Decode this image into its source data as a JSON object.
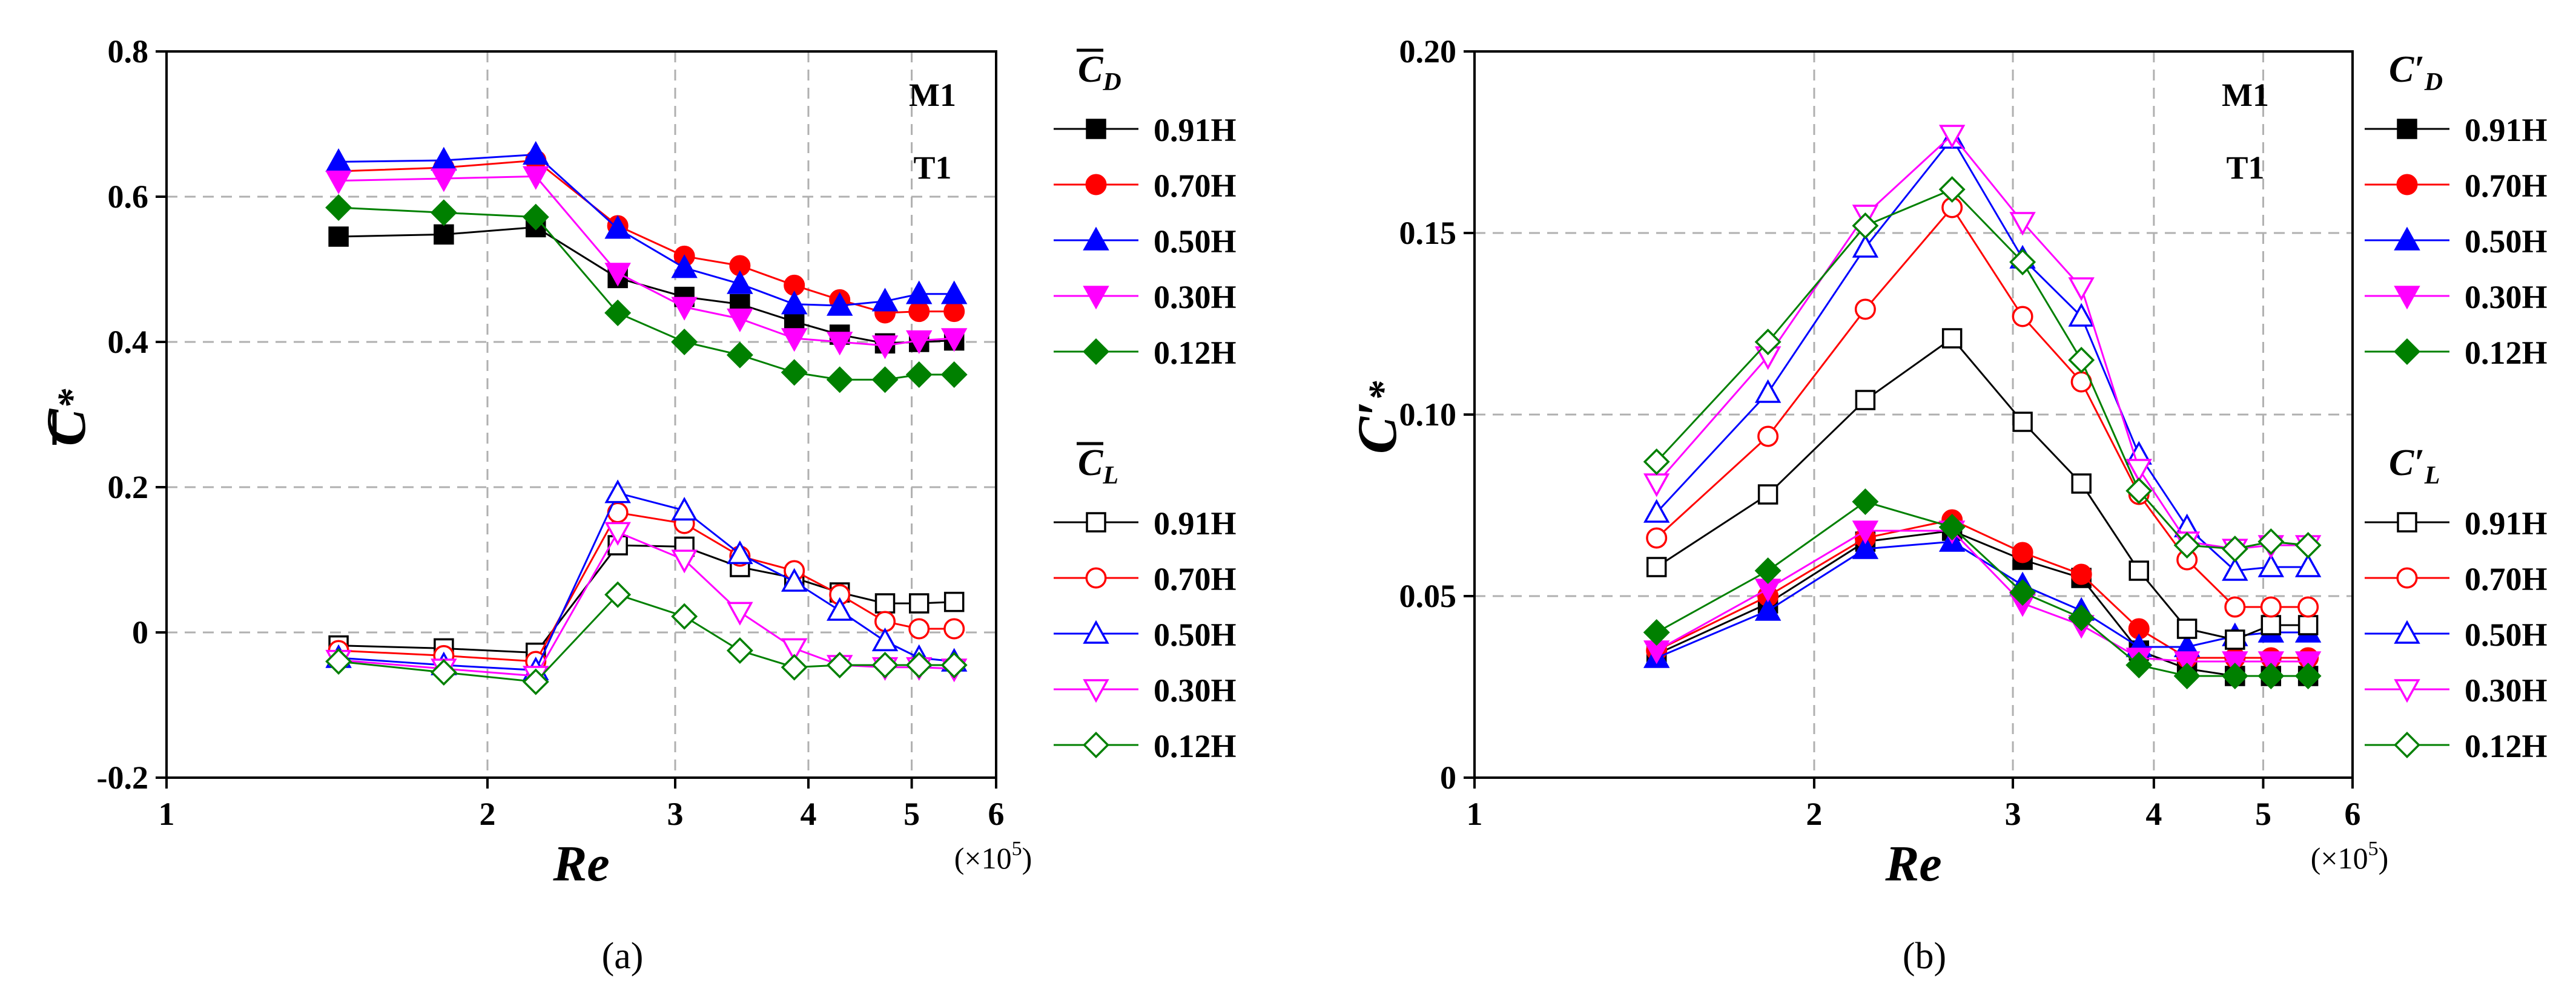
{
  "colors": {
    "0.91H": "#000000",
    "0.70H": "#ff0000",
    "0.50H": "#0000ff",
    "0.30H": "#ff00ff",
    "0.12H": "#008000",
    "grid": "#b0b0b0",
    "axis": "#000000"
  },
  "markers": {
    "0.91H": "square",
    "0.70H": "circle",
    "0.50H": "triangle-up",
    "0.30H": "triangle-down",
    "0.12H": "diamond"
  },
  "chart_data": [
    {
      "type": "line",
      "panel_label": "(a)",
      "xlabel": "Re",
      "x_unit_label": "(×10",
      "x_unit_exp": "5",
      "x_unit_close": ")",
      "ylabel_main": "C",
      "ylabel_sub": "*",
      "x_scale": "log",
      "xlim": [
        1,
        6
      ],
      "ylim": [
        -0.2,
        0.8
      ],
      "x_ticks": [
        1,
        2,
        3,
        4,
        5,
        6
      ],
      "x_tick_labels": [
        "1",
        "2",
        "3",
        "4",
        "5",
        "6"
      ],
      "y_ticks": [
        -0.2,
        0,
        0.2,
        0.4,
        0.6,
        0.8
      ],
      "y_tick_labels": [
        "-0.2",
        "0",
        "0.2",
        "0.4",
        "0.6",
        "0.8"
      ],
      "grid": "dashed",
      "annotations": [
        "M1",
        "T1"
      ],
      "legend_groups": [
        {
          "title_main": "C",
          "title_sub": "D",
          "filled": true,
          "entries": [
            "0.91H",
            "0.70H",
            "0.50H",
            "0.30H",
            "0.12H"
          ]
        },
        {
          "title_main": "C",
          "title_sub": "L",
          "filled": false,
          "entries": [
            "0.91H",
            "0.70H",
            "0.50H",
            "0.30H",
            "0.12H"
          ]
        }
      ],
      "x": [
        1.45,
        1.82,
        2.22,
        2.65,
        3.06,
        3.45,
        3.88,
        4.28,
        4.72,
        5.08,
        5.48
      ],
      "series": [
        {
          "name": "0.91H",
          "group": 0,
          "values": [
            0.545,
            0.548,
            0.558,
            0.488,
            0.462,
            0.452,
            0.428,
            0.41,
            0.398,
            0.4,
            0.402
          ]
        },
        {
          "name": "0.70H",
          "group": 0,
          "values": [
            0.635,
            0.64,
            0.65,
            0.56,
            0.518,
            0.505,
            0.478,
            0.458,
            0.44,
            0.442,
            0.442
          ]
        },
        {
          "name": "0.50H",
          "group": 0,
          "values": [
            0.648,
            0.65,
            0.658,
            0.556,
            0.502,
            0.48,
            0.452,
            0.45,
            0.456,
            0.466,
            0.466
          ]
        },
        {
          "name": "0.30H",
          "group": 0,
          "values": [
            0.622,
            0.625,
            0.628,
            0.495,
            0.448,
            0.432,
            0.405,
            0.4,
            0.395,
            0.402,
            0.405
          ]
        },
        {
          "name": "0.12H",
          "group": 0,
          "values": [
            0.585,
            0.578,
            0.572,
            0.44,
            0.4,
            0.382,
            0.358,
            0.348,
            0.348,
            0.355,
            0.355
          ]
        },
        {
          "name": "0.91H",
          "group": 1,
          "values": [
            -0.018,
            -0.022,
            -0.028,
            0.12,
            0.118,
            0.09,
            0.075,
            0.055,
            0.04,
            0.04,
            0.042
          ]
        },
        {
          "name": "0.70H",
          "group": 1,
          "values": [
            -0.025,
            -0.032,
            -0.04,
            0.165,
            0.15,
            0.105,
            0.085,
            0.052,
            0.015,
            0.005,
            0.005
          ]
        },
        {
          "name": "0.50H",
          "group": 1,
          "values": [
            -0.035,
            -0.045,
            -0.052,
            0.192,
            0.168,
            0.108,
            0.07,
            0.03,
            -0.012,
            -0.035,
            -0.04
          ]
        },
        {
          "name": "0.30H",
          "group": 1,
          "values": [
            -0.038,
            -0.05,
            -0.06,
            0.138,
            0.1,
            0.028,
            -0.022,
            -0.045,
            -0.048,
            -0.048,
            -0.05
          ]
        },
        {
          "name": "0.12H",
          "group": 1,
          "values": [
            -0.04,
            -0.055,
            -0.068,
            0.052,
            0.022,
            -0.025,
            -0.048,
            -0.045,
            -0.045,
            -0.045,
            -0.045
          ]
        }
      ]
    },
    {
      "type": "line",
      "panel_label": "(b)",
      "xlabel": "Re",
      "x_unit_label": "(×10",
      "x_unit_exp": "5",
      "x_unit_close": ")",
      "ylabel_main": "C′",
      "ylabel_sub": "*",
      "x_scale": "log",
      "xlim": [
        1,
        6
      ],
      "ylim": [
        0,
        0.2
      ],
      "x_ticks": [
        1,
        2,
        3,
        4,
        5,
        6
      ],
      "x_tick_labels": [
        "1",
        "2",
        "3",
        "4",
        "5",
        "6"
      ],
      "y_ticks": [
        0,
        0.05,
        0.1,
        0.15,
        0.2
      ],
      "y_tick_labels": [
        "0",
        "0.05",
        "0.10",
        "0.15",
        "0.20"
      ],
      "grid": "dashed",
      "annotations": [
        "M1",
        "T1"
      ],
      "legend_groups": [
        {
          "title_main": "C′",
          "title_sub": "D",
          "filled": true,
          "entries": [
            "0.91H",
            "0.70H",
            "0.50H",
            "0.30H",
            "0.12H"
          ]
        },
        {
          "title_main": "C′",
          "title_sub": "L",
          "filled": false,
          "entries": [
            "0.91H",
            "0.70H",
            "0.50H",
            "0.30H",
            "0.12H"
          ]
        }
      ],
      "x": [
        1.45,
        1.82,
        2.22,
        2.65,
        3.06,
        3.45,
        3.88,
        4.28,
        4.72,
        5.08,
        5.48
      ],
      "series": [
        {
          "name": "0.91H",
          "group": 0,
          "values": [
            0.034,
            0.048,
            0.065,
            0.068,
            0.06,
            0.055,
            0.035,
            0.03,
            0.028,
            0.028,
            0.028
          ]
        },
        {
          "name": "0.70H",
          "group": 0,
          "values": [
            0.035,
            0.05,
            0.066,
            0.071,
            0.062,
            0.056,
            0.041,
            0.033,
            0.033,
            0.033,
            0.033
          ]
        },
        {
          "name": "0.50H",
          "group": 0,
          "values": [
            0.033,
            0.046,
            0.063,
            0.065,
            0.053,
            0.046,
            0.036,
            0.036,
            0.039,
            0.04,
            0.04
          ]
        },
        {
          "name": "0.30H",
          "group": 0,
          "values": [
            0.035,
            0.052,
            0.068,
            0.068,
            0.048,
            0.042,
            0.033,
            0.032,
            0.032,
            0.032,
            0.032
          ]
        },
        {
          "name": "0.12H",
          "group": 0,
          "values": [
            0.04,
            0.057,
            0.076,
            0.069,
            0.051,
            0.044,
            0.031,
            0.028,
            0.028,
            0.028,
            0.028
          ]
        },
        {
          "name": "0.91H",
          "group": 1,
          "values": [
            0.058,
            0.078,
            0.104,
            0.121,
            0.098,
            0.081,
            0.057,
            0.041,
            0.038,
            0.042,
            0.042
          ]
        },
        {
          "name": "0.70H",
          "group": 1,
          "values": [
            0.066,
            0.094,
            0.129,
            0.157,
            0.127,
            0.109,
            0.078,
            0.06,
            0.047,
            0.047,
            0.047
          ]
        },
        {
          "name": "0.50H",
          "group": 1,
          "values": [
            0.073,
            0.106,
            0.146,
            0.176,
            0.143,
            0.127,
            0.089,
            0.069,
            0.057,
            0.058,
            0.058
          ]
        },
        {
          "name": "0.30H",
          "group": 1,
          "values": [
            0.081,
            0.116,
            0.155,
            0.177,
            0.153,
            0.135,
            0.085,
            0.065,
            0.063,
            0.064,
            0.064
          ]
        },
        {
          "name": "0.12H",
          "group": 1,
          "values": [
            0.087,
            0.12,
            0.152,
            0.162,
            0.142,
            0.115,
            0.079,
            0.064,
            0.063,
            0.065,
            0.064
          ]
        }
      ]
    }
  ]
}
